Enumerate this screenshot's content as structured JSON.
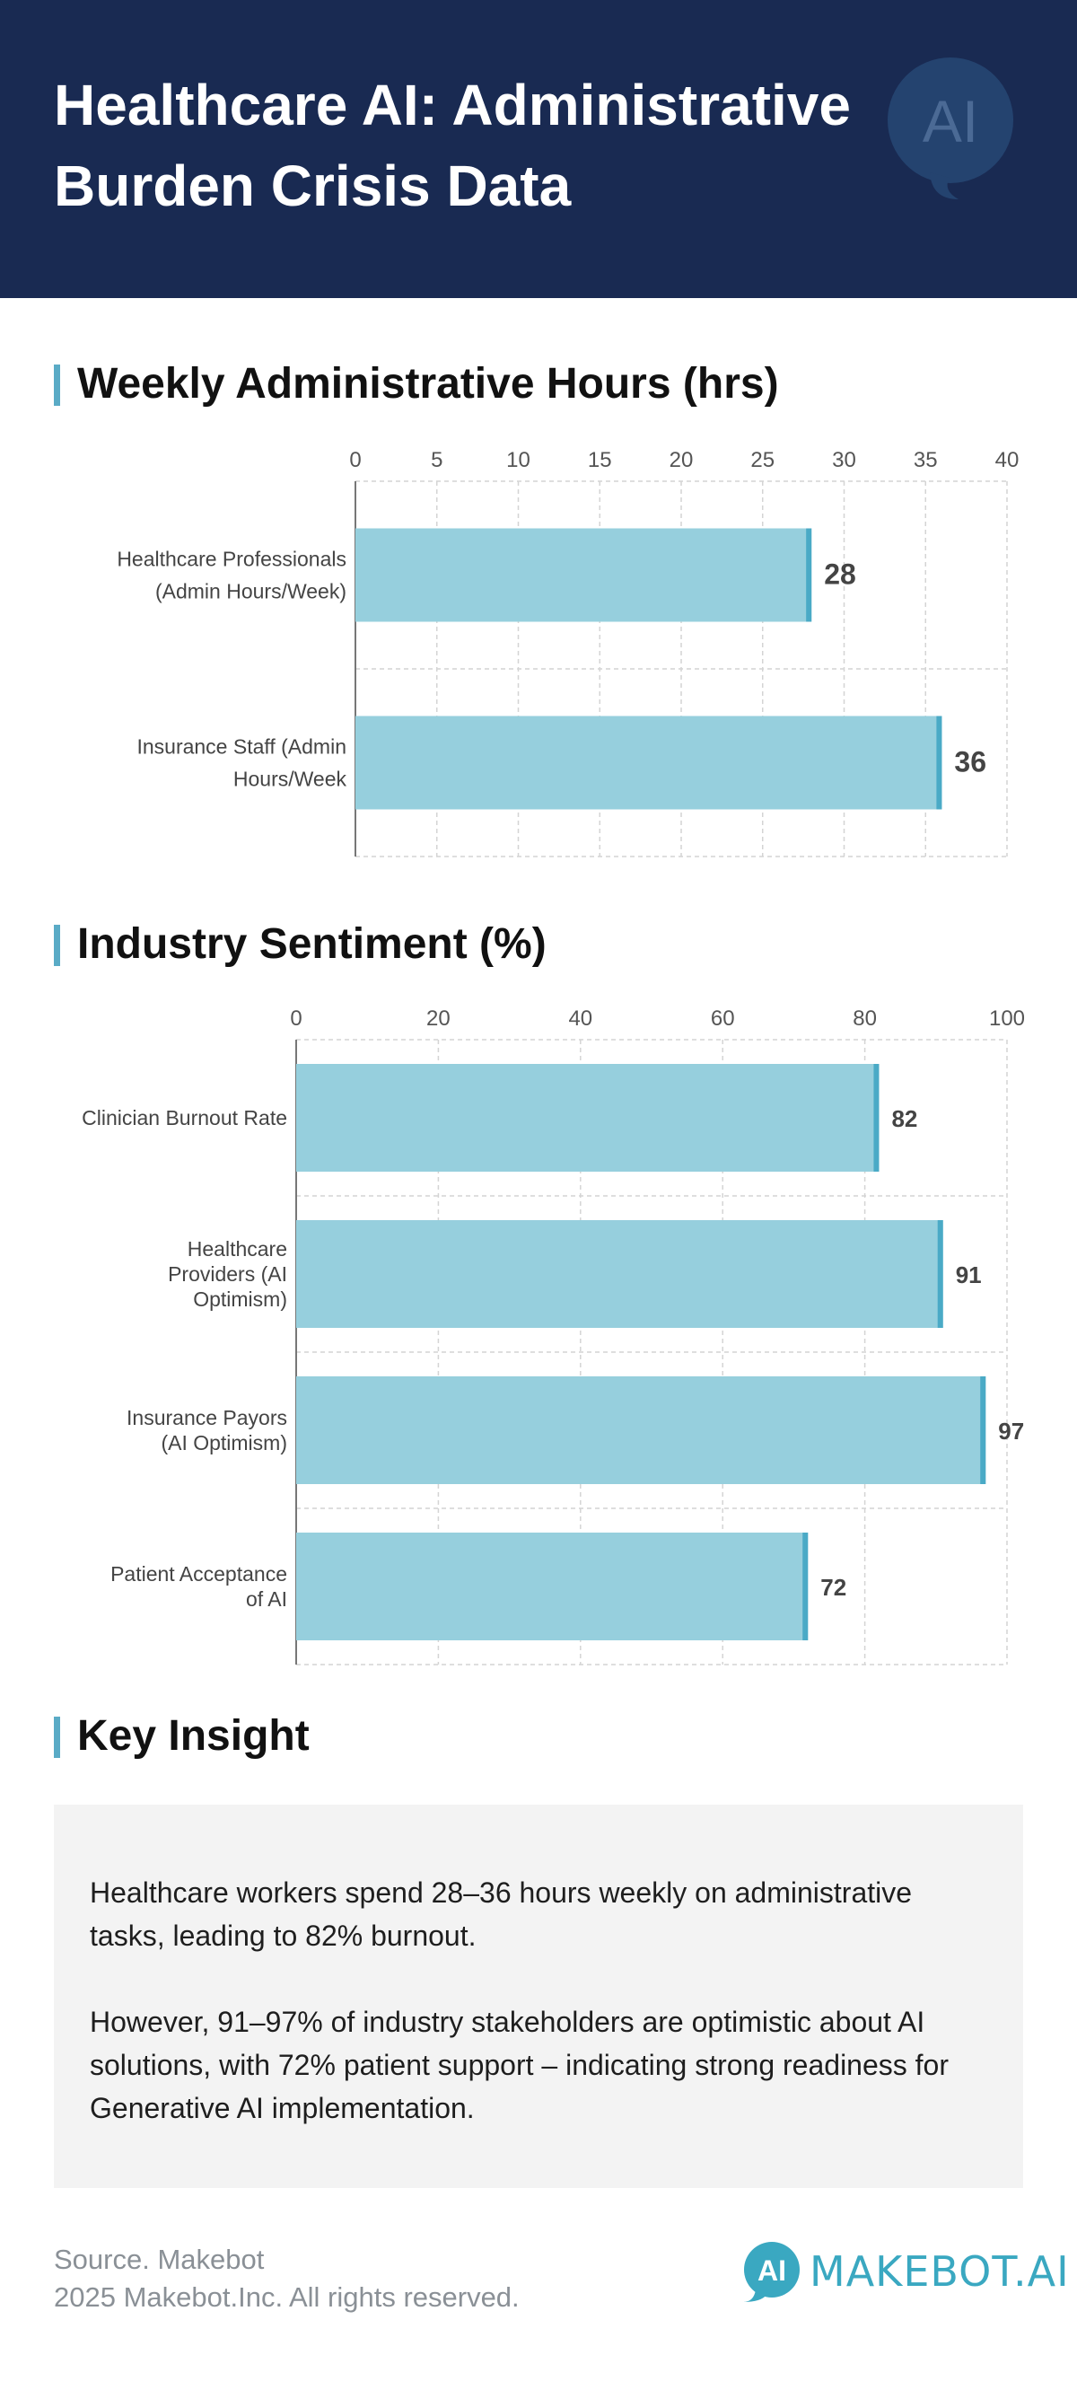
{
  "header": {
    "title": "Healthcare AI: Administrative Burden Crisis Data",
    "badge_text": "AI"
  },
  "sections": {
    "hours_title": "Weekly Administrative Hours (hrs)",
    "sentiment_title": "Industry Sentiment (%)",
    "insight_title": "Key Insight"
  },
  "chart_data": [
    {
      "type": "bar",
      "orientation": "horizontal",
      "categories": [
        "Healthcare Professionals (Admin Hours/Week)",
        "Insurance Staff (Admin Hours/Week"
      ],
      "category_lines": [
        [
          "Healthcare Professionals",
          "(Admin Hours/Week)"
        ],
        [
          "Insurance Staff (Admin",
          "Hours/Week"
        ]
      ],
      "values": [
        28,
        36
      ],
      "xlim": [
        0,
        40
      ],
      "ticks": [
        0,
        5,
        10,
        15,
        20,
        25,
        30,
        35,
        40
      ],
      "tick_labels": [
        "0",
        "5",
        "10",
        "15",
        "20",
        "25",
        "30",
        "35",
        "40"
      ],
      "axis_position": "top",
      "grid": true,
      "bar_color": "#96cfdd",
      "bar_edge_color": "#4aaac6"
    },
    {
      "type": "bar",
      "orientation": "horizontal",
      "categories": [
        "Clinician Burnout Rate",
        "Healthcare Providers (AI Optimism)",
        "Insurance Payors (AI Optimism)",
        "Patient Acceptance of AI"
      ],
      "category_lines": [
        [
          "Clinician Burnout Rate"
        ],
        [
          "Healthcare",
          "Providers (AI",
          "Optimism)"
        ],
        [
          "Insurance Payors",
          "(AI Optimism)"
        ],
        [
          "Patient Acceptance",
          "of AI"
        ]
      ],
      "values": [
        82,
        91,
        97,
        72
      ],
      "xlim": [
        0,
        100
      ],
      "ticks": [
        0,
        20,
        40,
        60,
        80,
        100
      ],
      "tick_labels": [
        "0",
        "20",
        "40",
        "60",
        "80",
        "100"
      ],
      "axis_position": "top",
      "grid": true,
      "bar_color": "#96cfdd",
      "bar_edge_color": "#4aaac6"
    }
  ],
  "insight": {
    "paragraph1": "Healthcare workers spend 28–36 hours weekly on administrative tasks, leading to 82% burnout.",
    "paragraph2": "However, 91–97% of industry stakeholders are optimistic about AI solutions, with 72% patient support – indicating strong readiness for Generative AI implementation."
  },
  "footer": {
    "source": "Source. Makebot",
    "copyright": "2025 Makebot.Inc. All rights reserved.",
    "brand_mark": "AI",
    "brand_name": "MAKEBOT.AI"
  },
  "colors": {
    "header_bg": "#192a52",
    "accent": "#5aabc6",
    "bar_fill": "#96cfdd",
    "bar_edge": "#4aaac6",
    "insight_bg": "#f3f3f3"
  }
}
